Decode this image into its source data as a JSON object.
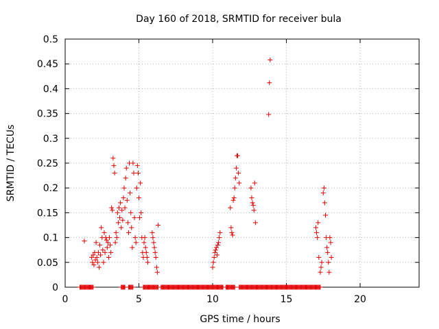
{
  "chart_data": {
    "type": "scatter",
    "title": "Day 160 of 2018, SRMTID for receiver bula",
    "xlabel": "GPS time / hours",
    "ylabel": "SRMTID / TECUs",
    "xlim": [
      0,
      24
    ],
    "ylim": [
      0,
      0.5
    ],
    "x_ticks": [
      0,
      5,
      10,
      15,
      20
    ],
    "x_tick_labels": [
      "0",
      "5",
      "10",
      "15",
      "20"
    ],
    "y_ticks": [
      0,
      0.05,
      0.1,
      0.15,
      0.2,
      0.25,
      0.3,
      0.35,
      0.4,
      0.45,
      0.5
    ],
    "y_tick_labels": [
      "0",
      "0.05",
      "0.1",
      "0.15",
      "0.2",
      "0.25",
      "0.3",
      "0.35",
      "0.4",
      "0.45",
      "0.5"
    ],
    "grid": true,
    "marker": "+",
    "marker_color": "#e00000",
    "series": [
      {
        "name": "SRMTID",
        "points": [
          [
            1.3,
            0.093
          ],
          [
            1.8,
            0.06
          ],
          [
            1.85,
            0.05
          ],
          [
            1.9,
            0.065
          ],
          [
            1.95,
            0.045
          ],
          [
            2.0,
            0.07
          ],
          [
            2.05,
            0.055
          ],
          [
            2.1,
            0.09
          ],
          [
            2.15,
            0.06
          ],
          [
            2.2,
            0.05
          ],
          [
            2.25,
            0.07
          ],
          [
            2.3,
            0.04
          ],
          [
            2.35,
            0.085
          ],
          [
            2.4,
            0.065
          ],
          [
            2.45,
            0.12
          ],
          [
            2.5,
            0.1
          ],
          [
            2.55,
            0.075
          ],
          [
            2.6,
            0.05
          ],
          [
            2.65,
            0.11
          ],
          [
            2.7,
            0.07
          ],
          [
            2.75,
            0.1
          ],
          [
            2.8,
            0.095
          ],
          [
            2.85,
            0.08
          ],
          [
            2.9,
            0.09
          ],
          [
            2.95,
            0.06
          ],
          [
            3.0,
            0.1
          ],
          [
            3.05,
            0.085
          ],
          [
            3.1,
            0.07
          ],
          [
            3.15,
            0.16
          ],
          [
            3.2,
            0.155
          ],
          [
            3.25,
            0.26
          ],
          [
            3.3,
            0.245
          ],
          [
            3.35,
            0.23
          ],
          [
            3.4,
            0.09
          ],
          [
            3.45,
            0.11
          ],
          [
            3.5,
            0.1
          ],
          [
            3.55,
            0.15
          ],
          [
            3.6,
            0.13
          ],
          [
            3.65,
            0.16
          ],
          [
            3.7,
            0.14
          ],
          [
            3.75,
            0.17
          ],
          [
            3.8,
            0.12
          ],
          [
            3.85,
            0.155
          ],
          [
            3.9,
            0.135
          ],
          [
            3.95,
            0.18
          ],
          [
            4.0,
            0.2
          ],
          [
            4.05,
            0.16
          ],
          [
            4.1,
            0.22
          ],
          [
            4.15,
            0.24
          ],
          [
            4.2,
            0.175
          ],
          [
            4.25,
            0.13
          ],
          [
            4.3,
            0.11
          ],
          [
            4.35,
            0.25
          ],
          [
            4.4,
            0.19
          ],
          [
            4.45,
            0.15
          ],
          [
            4.5,
            0.12
          ],
          [
            4.55,
            0.08
          ],
          [
            4.6,
            0.25
          ],
          [
            4.65,
            0.23
          ],
          [
            4.7,
            0.14
          ],
          [
            4.75,
            0.1
          ],
          [
            4.8,
            0.09
          ],
          [
            4.85,
            0.2
          ],
          [
            4.9,
            0.245
          ],
          [
            4.95,
            0.23
          ],
          [
            5.0,
            0.18
          ],
          [
            5.05,
            0.14
          ],
          [
            5.1,
            0.21
          ],
          [
            5.15,
            0.15
          ],
          [
            5.2,
            0.1
          ],
          [
            5.25,
            0.07
          ],
          [
            5.3,
            0.06
          ],
          [
            5.35,
            0.09
          ],
          [
            5.4,
            0.1
          ],
          [
            5.45,
            0.08
          ],
          [
            5.5,
            0.07
          ],
          [
            5.55,
            0.06
          ],
          [
            5.6,
            0.05
          ],
          [
            5.9,
            0.11
          ],
          [
            5.95,
            0.1
          ],
          [
            6.0,
            0.09
          ],
          [
            6.05,
            0.08
          ],
          [
            6.1,
            0.07
          ],
          [
            6.15,
            0.06
          ],
          [
            6.2,
            0.04
          ],
          [
            6.25,
            0.03
          ],
          [
            6.3,
            0.125
          ],
          [
            10.0,
            0.04
          ],
          [
            10.05,
            0.05
          ],
          [
            10.1,
            0.06
          ],
          [
            10.15,
            0.07
          ],
          [
            10.2,
            0.075
          ],
          [
            10.25,
            0.08
          ],
          [
            10.3,
            0.065
          ],
          [
            10.35,
            0.085
          ],
          [
            10.4,
            0.09
          ],
          [
            10.45,
            0.1
          ],
          [
            10.5,
            0.11
          ],
          [
            11.2,
            0.16
          ],
          [
            11.25,
            0.12
          ],
          [
            11.3,
            0.11
          ],
          [
            11.35,
            0.105
          ],
          [
            11.4,
            0.175
          ],
          [
            11.45,
            0.18
          ],
          [
            11.5,
            0.2
          ],
          [
            11.55,
            0.22
          ],
          [
            11.6,
            0.24
          ],
          [
            11.65,
            0.265
          ],
          [
            11.7,
            0.265
          ],
          [
            11.75,
            0.23
          ],
          [
            11.8,
            0.21
          ],
          [
            12.6,
            0.2
          ],
          [
            12.65,
            0.18
          ],
          [
            12.7,
            0.17
          ],
          [
            12.75,
            0.165
          ],
          [
            12.8,
            0.155
          ],
          [
            12.85,
            0.21
          ],
          [
            12.9,
            0.13
          ],
          [
            13.8,
            0.348
          ],
          [
            13.85,
            0.412
          ],
          [
            13.9,
            0.458
          ],
          [
            17.0,
            0.12
          ],
          [
            17.05,
            0.11
          ],
          [
            17.1,
            0.1
          ],
          [
            17.15,
            0.13
          ],
          [
            17.2,
            0.06
          ],
          [
            17.3,
            0.03
          ],
          [
            17.35,
            0.04
          ],
          [
            17.4,
            0.05
          ],
          [
            17.5,
            0.19
          ],
          [
            17.55,
            0.2
          ],
          [
            17.6,
            0.17
          ],
          [
            17.65,
            0.145
          ],
          [
            17.7,
            0.1
          ],
          [
            17.75,
            0.08
          ],
          [
            17.8,
            0.07
          ],
          [
            17.85,
            0.05
          ],
          [
            17.9,
            0.03
          ],
          [
            17.95,
            0.1
          ],
          [
            18.0,
            0.09
          ],
          [
            18.05,
            0.06
          ]
        ]
      },
      {
        "name": "SRMTID zero",
        "zero_segments": [
          [
            1.0,
            1.9
          ],
          [
            3.8,
            4.05
          ],
          [
            4.3,
            4.6
          ],
          [
            5.3,
            6.3
          ],
          [
            6.5,
            10.7
          ],
          [
            10.9,
            11.5
          ],
          [
            11.8,
            17.3
          ]
        ],
        "zero_value": 0
      }
    ]
  }
}
